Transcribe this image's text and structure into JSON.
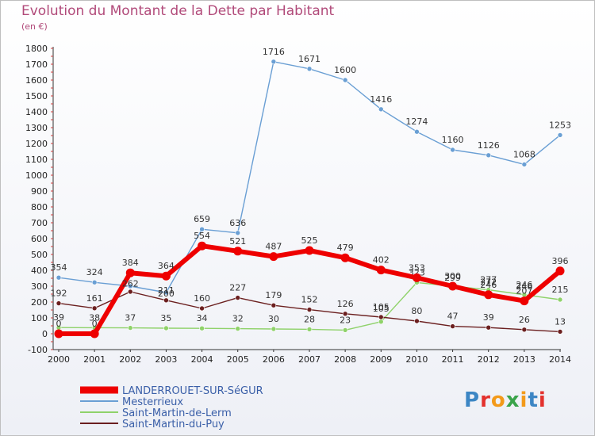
{
  "title": "Evolution du Montant de la Dette par Habitant",
  "unit": "(en €)",
  "logo": {
    "text": "Proxiti",
    "colors": [
      "#3c86c4",
      "#e3312d",
      "#f39a1a",
      "#3aa34a",
      "#f39a1a",
      "#3c86c4",
      "#e3312d"
    ]
  },
  "chart_data": {
    "type": "line",
    "x": [
      "2000",
      "2001",
      "2002",
      "2003",
      "2004",
      "2005",
      "2006",
      "2007",
      "2008",
      "2009",
      "2010",
      "2011",
      "2012",
      "2013",
      "2014"
    ],
    "ylim": [
      -100,
      1800
    ],
    "yticks": [
      -100,
      0,
      100,
      200,
      300,
      400,
      500,
      600,
      700,
      800,
      900,
      1000,
      1100,
      1200,
      1300,
      1400,
      1500,
      1600,
      1700,
      1800
    ],
    "grid": false,
    "legend": "bottom-left",
    "series": [
      {
        "name": "Mesterrieux",
        "color": "#6a9fd4",
        "width": 1.4,
        "marker": 3,
        "values": [
          354,
          324,
          300,
          260,
          659,
          636,
          1716,
          1671,
          1600,
          1416,
          1274,
          1160,
          1126,
          1068,
          1253
        ],
        "labels": [
          "354",
          "324",
          "",
          "",
          "659",
          "636",
          "1716",
          "1671",
          "1600",
          "1416",
          "1274",
          "1160",
          "1126",
          "1068",
          "1253"
        ]
      },
      {
        "name": "Saint-Martin-de-Lerm",
        "color": "#8fd26a",
        "width": 1.4,
        "marker": 3,
        "values": [
          39,
          38,
          37,
          35,
          34,
          32,
          30,
          28,
          23,
          76,
          323,
          300,
          277,
          246,
          215
        ],
        "labels": [
          "39",
          "38",
          "37",
          "35",
          "34",
          "32",
          "30",
          "28",
          "23",
          "",
          "323",
          "",
          "277",
          "246",
          "215"
        ]
      },
      {
        "name": "Saint-Martin-du-Puy",
        "color": "#6b1f1f",
        "width": 1.4,
        "marker": 3,
        "values": [
          192,
          161,
          265,
          211,
          160,
          227,
          179,
          152,
          126,
          105,
          80,
          47,
          39,
          26,
          13
        ],
        "labels": [
          "192",
          "161",
          "",
          "211",
          "160",
          "227",
          "179",
          "152",
          "126",
          "105",
          "80",
          "47",
          "39",
          "26",
          "13"
        ]
      },
      {
        "name": "LANDERROUET-SUR-SéGUR",
        "color": "#ee0000",
        "width": 6,
        "marker": 5.5,
        "values": [
          0,
          0,
          384,
          364,
          554,
          521,
          487,
          525,
          479,
          402,
          353,
          300,
          246,
          207,
          396
        ],
        "labels": [
          "0",
          "0",
          "384",
          "364",
          "554",
          "521",
          "487",
          "525",
          "479",
          "402",
          "353",
          "300",
          "246",
          "207",
          "396"
        ]
      }
    ],
    "legend_order": [
      3,
      0,
      1,
      2
    ],
    "extra_labels": [
      {
        "x": "2002",
        "value": 262,
        "text": "262"
      },
      {
        "x": "2003",
        "value": 200,
        "text": "200"
      },
      {
        "x": "2009",
        "value": 105,
        "text": "105"
      },
      {
        "x": "2011",
        "value": 299,
        "text": "299"
      },
      {
        "x": "2012",
        "value": 272,
        "text": "272"
      },
      {
        "x": "2013",
        "value": 246,
        "text": "246"
      }
    ]
  }
}
